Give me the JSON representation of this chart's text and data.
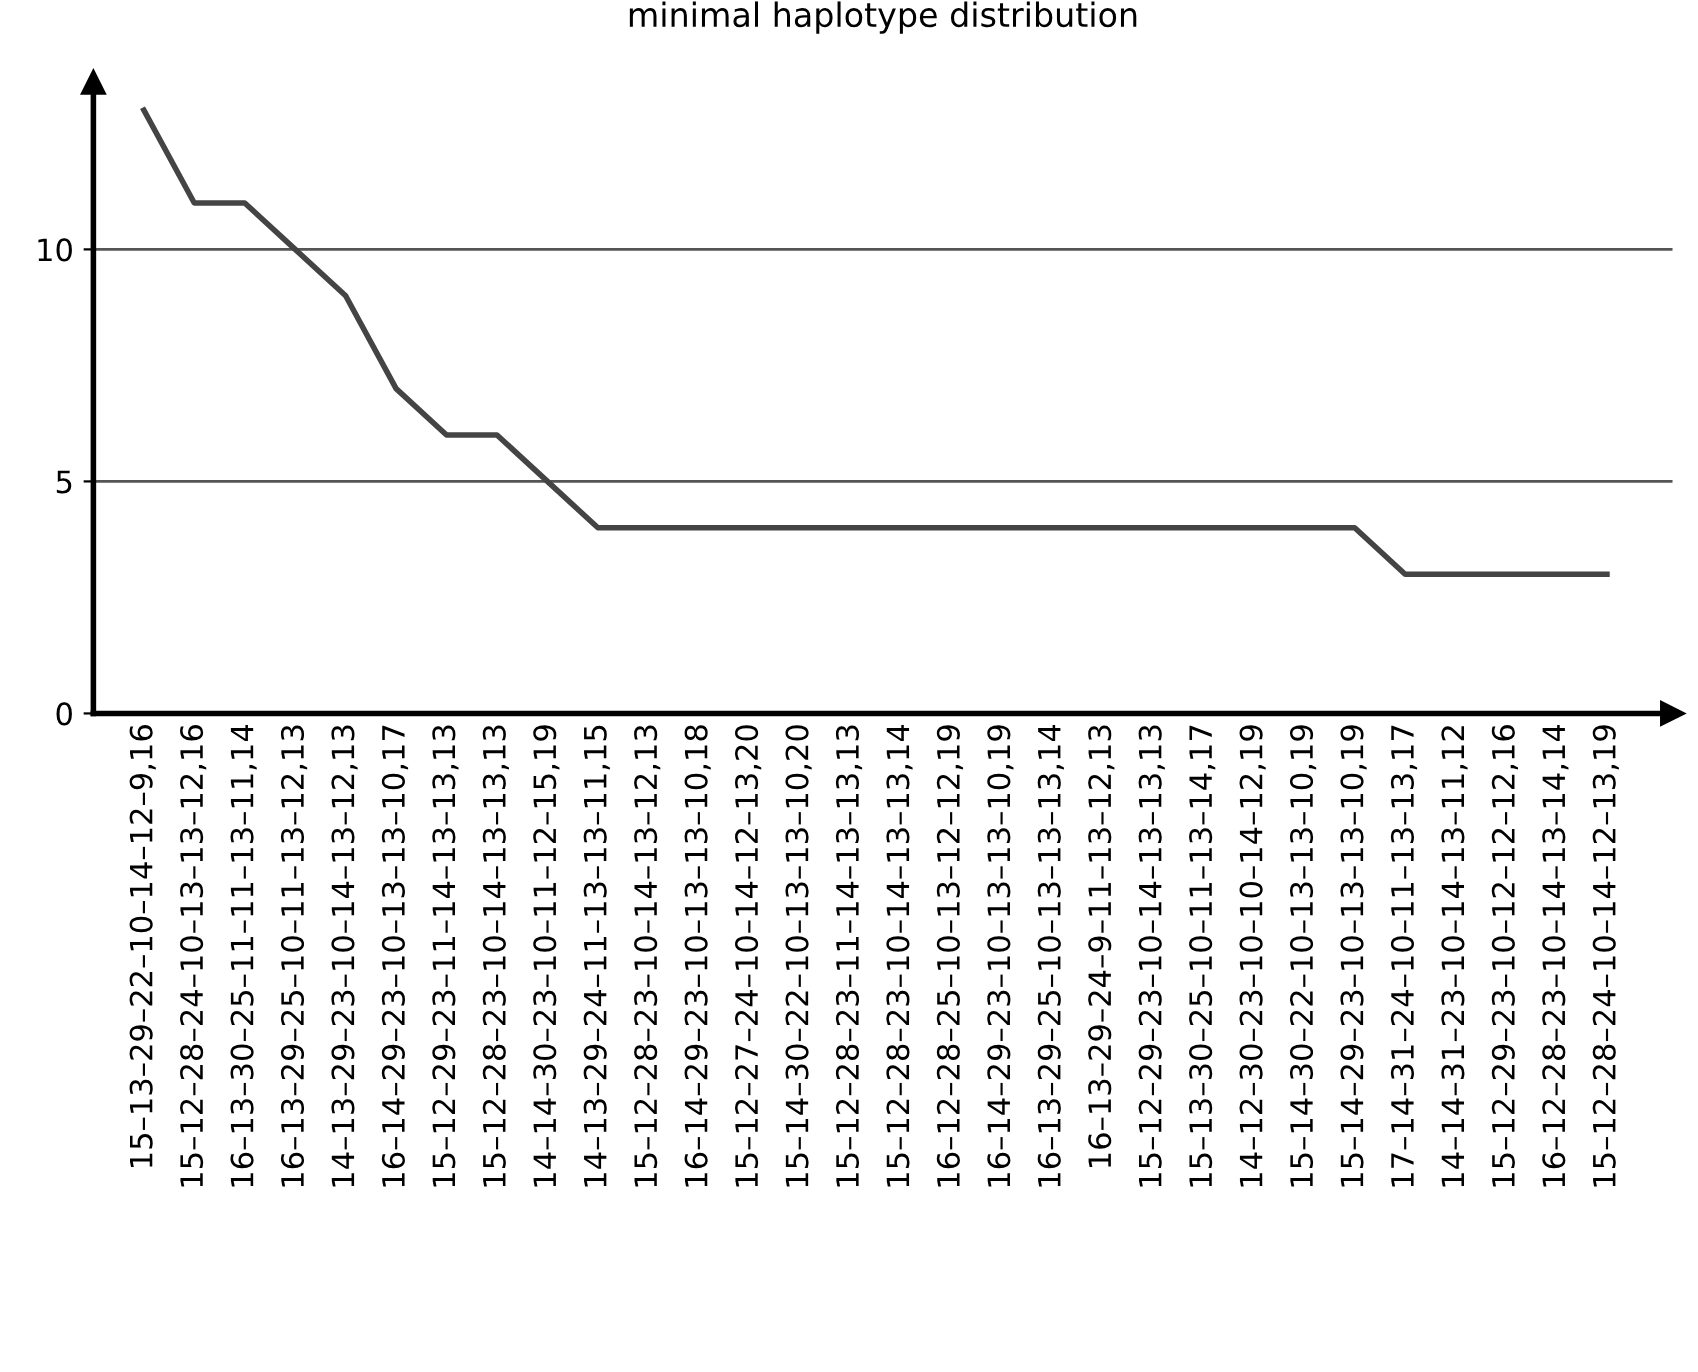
{
  "chart_data": {
    "type": "line",
    "title": "minimal haplotype distribution",
    "categories": [
      "15–13–29–22–10–14–12–9,16",
      "15–12–28–24–10–13–13–12,16",
      "16–13–30–25–11–11–13–11,14",
      "16–13–29–25–10–11–13–12,13",
      "14–13–29–23–10–14–13–12,13",
      "16–14–29–23–10–13–13–10,17",
      "15–12–29–23–11–14–13–13,13",
      "15–12–28–23–10–14–13–13,13",
      "14–14–30–23–10–11–12–15,19",
      "14–13–29–24–11–13–13–11,15",
      "15–12–28–23–10–14–13–12,13",
      "16–14–29–23–10–13–13–10,18",
      "15–12–27–24–10–14–12–13,20",
      "15–14–30–22–10–13–13–10,20",
      "15–12–28–23–11–14–13–13,13",
      "15–12–28–23–10–14–13–13,14",
      "16–12–28–25–10–13–12–12,19",
      "16–14–29–23–10–13–13–10,19",
      "16–13–29–25–10–13–13–13,14",
      "16–13–29–24–9–11–13–12,13",
      "15–12–29–23–10–14–13–13,13",
      "15–13–30–25–10–11–13–14,17",
      "14–12–30–23–10–10–14–12,19",
      "15–14–30–22–10–13–13–10,19",
      "15–14–29–23–10–13–13–10,19",
      "17–14–31–24–10–11–13–13,17",
      "14–14–31–23–10–14–13–11,12",
      "15–12–29–23–10–12–12–12,16",
      "16–12–28–23–10–14–13–14,14",
      "15–12–28–24–10–14–12–13,19"
    ],
    "series": [
      {
        "color": "#444444",
        "values": [
          13,
          11,
          11,
          10,
          9,
          7,
          6,
          6,
          5,
          4,
          4,
          4,
          4,
          4,
          4,
          4,
          4,
          4,
          4,
          4,
          4,
          4,
          4,
          4,
          4,
          3,
          3,
          3,
          3,
          3
        ]
      }
    ],
    "ylim": [
      0,
      13.6
    ],
    "yticks": [
      0,
      5,
      10
    ],
    "grid": "y",
    "marker": "none",
    "line_style": "solid",
    "legend": false
  }
}
